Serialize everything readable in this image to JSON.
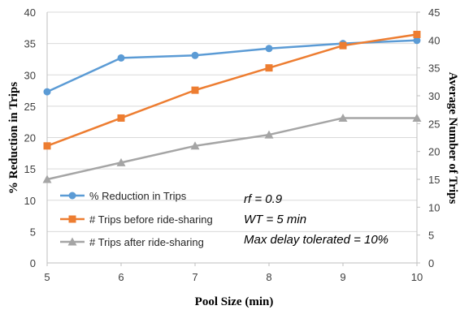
{
  "chart_data": {
    "type": "line",
    "title": "",
    "xlabel": "Pool Size (min)",
    "ylabel": "% Reduction in Trips",
    "y2label": "Average Number of Trips",
    "x": [
      5,
      6,
      7,
      8,
      9,
      10
    ],
    "xlim": [
      5,
      10
    ],
    "ylim": [
      0,
      40
    ],
    "y2lim": [
      0,
      45
    ],
    "xticks": [
      "5",
      "6",
      "7",
      "8",
      "9",
      "10"
    ],
    "yticks": [
      "0",
      "5",
      "10",
      "15",
      "20",
      "25",
      "30",
      "35",
      "40"
    ],
    "y2ticks": [
      "0",
      "5",
      "10",
      "15",
      "20",
      "25",
      "30",
      "35",
      "40",
      "45"
    ],
    "grid": "horizontal",
    "legend_position": "bottom-left",
    "series": [
      {
        "name": "% Reduction in Trips",
        "axis": "left",
        "color": "#5B9BD5",
        "marker": "circle",
        "values": [
          27.3,
          32.7,
          33.1,
          34.2,
          35.0,
          35.5
        ]
      },
      {
        "name": "# Trips before ride-sharing",
        "axis": "right",
        "color": "#ED7D31",
        "marker": "square",
        "values": [
          21,
          26,
          31,
          35,
          39,
          41
        ]
      },
      {
        "name": "# Trips after ride-sharing",
        "axis": "right",
        "color": "#A5A5A5",
        "marker": "triangle",
        "values": [
          15,
          18,
          21,
          23,
          26,
          26
        ]
      }
    ],
    "annotations": [
      "rf = 0.9",
      "WT = 5 min",
      "Max delay tolerated = 10%"
    ]
  }
}
